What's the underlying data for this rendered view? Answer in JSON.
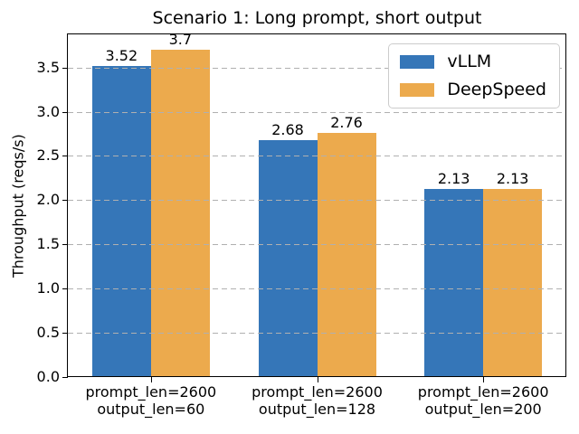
{
  "chart_data": {
    "type": "bar",
    "title": "Scenario 1: Long prompt, short output",
    "ylabel": "Throughput (reqs/s)",
    "xlabel": "",
    "categories": [
      [
        "prompt_len=2600",
        "output_len=60"
      ],
      [
        "prompt_len=2600",
        "output_len=128"
      ],
      [
        "prompt_len=2600",
        "output_len=200"
      ]
    ],
    "series": [
      {
        "name": "vLLM",
        "color": "#3576b8",
        "values": [
          3.52,
          2.68,
          2.13
        ],
        "labels": [
          "3.52",
          "2.68",
          "2.13"
        ]
      },
      {
        "name": "DeepSpeed",
        "color": "#ecaa4d",
        "values": [
          3.7,
          2.76,
          2.13
        ],
        "labels": [
          "3.7",
          "2.76",
          "2.13"
        ]
      }
    ],
    "yticks": [
      "0.0",
      "0.5",
      "1.0",
      "1.5",
      "2.0",
      "2.5",
      "3.0",
      "3.5"
    ],
    "ylim": [
      0,
      3.875
    ],
    "grid": {
      "axis": "y",
      "linestyle": "dashed",
      "color": "#b0b0b0"
    },
    "legend": {
      "position": "upper right"
    },
    "bar_value_labels": true,
    "colors": {
      "axis": "#000000",
      "background": "#ffffff",
      "text": "#000000"
    }
  }
}
